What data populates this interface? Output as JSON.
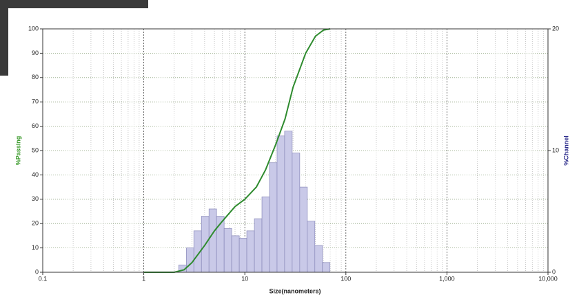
{
  "chart_data": {
    "type": "combo",
    "xlabel": "Size(nanometers)",
    "ylabel": "%Passing",
    "y2label": "%Channel",
    "xscale": "log",
    "xlim": [
      0.1,
      10000
    ],
    "xticks": [
      0.1,
      1,
      10,
      100,
      {
        "value": 1000,
        "label": "1,000"
      },
      {
        "value": 10000,
        "label": "10,000"
      }
    ],
    "ylim": [
      0,
      100
    ],
    "yticks": [
      0,
      10,
      20,
      30,
      40,
      50,
      60,
      70,
      80,
      90,
      100
    ],
    "y2lim": [
      0,
      20
    ],
    "y2ticks": [
      0,
      10,
      20
    ],
    "grid": true,
    "ylabel_color": "#3a9a2a",
    "y2label_color": "#2a2a8a",
    "series": [
      {
        "type": "bar",
        "axis": "y2",
        "color": "#c9c9e8",
        "bins": [
          2.22,
          2.64,
          3.13,
          3.72,
          4.42,
          5.25,
          6.24,
          7.41,
          8.81,
          10.46,
          12.43,
          14.77,
          17.54,
          20.84,
          24.76,
          29.41,
          34.94,
          41.51,
          49.32,
          58.59,
          69.6
        ],
        "values": [
          0.6,
          2.0,
          3.4,
          4.6,
          5.2,
          4.6,
          3.6,
          3.0,
          2.8,
          3.4,
          4.4,
          6.2,
          9.0,
          11.2,
          11.6,
          9.8,
          7.0,
          4.2,
          2.2,
          0.8
        ]
      },
      {
        "type": "line",
        "color": "#2e8b2e",
        "x": [
          1,
          2,
          2.5,
          3,
          4,
          5,
          6,
          8,
          10,
          13,
          16,
          20,
          25,
          30,
          40,
          50,
          60,
          70
        ],
        "values": [
          0,
          0,
          1,
          4,
          11,
          17,
          21,
          27,
          30,
          35,
          42,
          52,
          63,
          76,
          90,
          97,
          99.5,
          100
        ]
      }
    ]
  }
}
